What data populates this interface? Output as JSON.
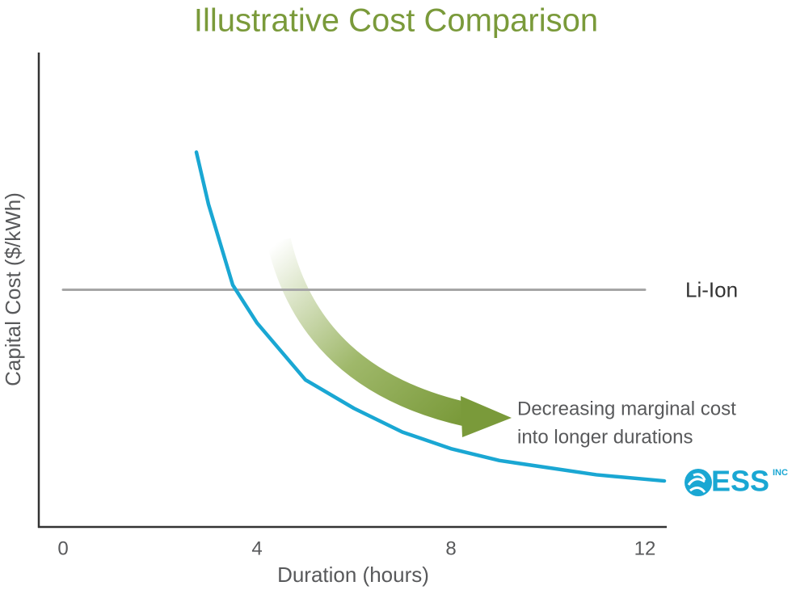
{
  "chart_data": {
    "type": "line",
    "title": "Illustrative Cost Comparison",
    "x_label": "Duration (hours)",
    "y_label": "Capital Cost ($/kWh)",
    "xlim": [
      -0.5,
      12.45
    ],
    "xticks": [
      0,
      4,
      8,
      12
    ],
    "ylim": [
      0,
      100
    ],
    "yticks": [],
    "grid": false,
    "series": [
      {
        "name": "Li-Ion",
        "color": "#a6a6a6",
        "x": [
          0,
          12
        ],
        "values": [
          50,
          50
        ]
      },
      {
        "name": "ESS",
        "logo_suffix": "INC",
        "color": "#1aa7d3",
        "x": [
          2.75,
          3,
          3.5,
          4,
          5,
          6,
          7,
          8,
          9,
          10,
          11,
          12.4
        ],
        "values": [
          79,
          68,
          51,
          43,
          31,
          25,
          20,
          16.5,
          14,
          12.5,
          11,
          9.7
        ]
      }
    ],
    "annotation": [
      "Decreasing marginal cost",
      "into longer durations"
    ]
  }
}
